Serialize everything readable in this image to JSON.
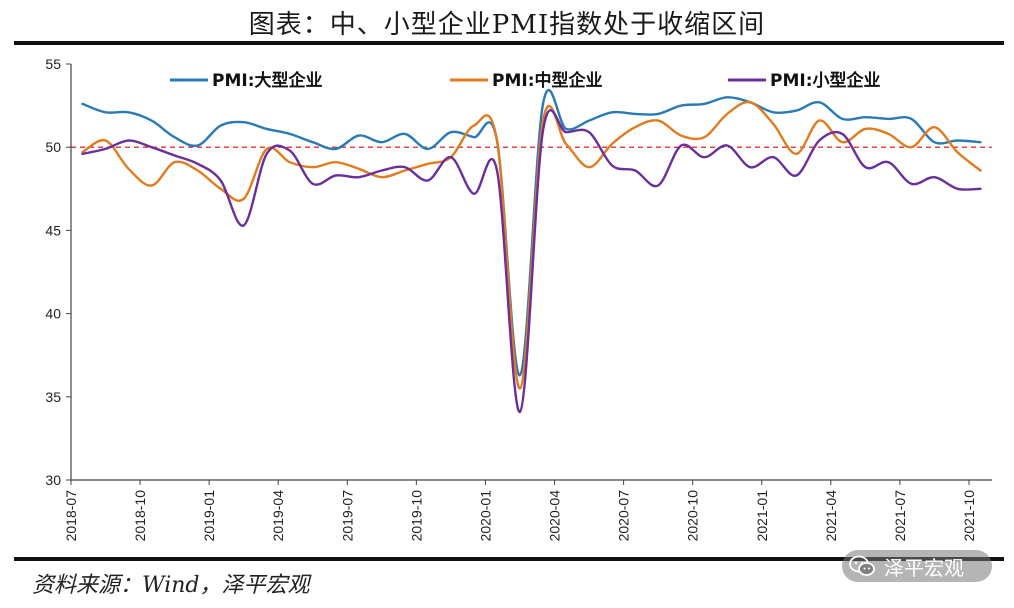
{
  "title": "图表：中、小型企业PMI指数处于收缩区间",
  "source": "资料来源：Wind，泽平宏观",
  "watermark": {
    "text": "泽平宏观",
    "icon": "wechat-icon"
  },
  "chart_data": {
    "type": "line",
    "title": "图表：中、小型企业PMI指数处于收缩区间",
    "xlabel": "",
    "ylabel": "",
    "ylim": [
      30,
      55
    ],
    "yticks": [
      30,
      35,
      40,
      45,
      50,
      55
    ],
    "reference_line": {
      "value": 50,
      "color": "#e03030",
      "style": "dashed"
    },
    "x": [
      "2018-07",
      "2018-08",
      "2018-09",
      "2018-10",
      "2018-11",
      "2018-12",
      "2019-01",
      "2019-02",
      "2019-03",
      "2019-04",
      "2019-05",
      "2019-06",
      "2019-07",
      "2019-08",
      "2019-09",
      "2019-10",
      "2019-11",
      "2019-12",
      "2020-01",
      "2020-02",
      "2020-03",
      "2020-04",
      "2020-05",
      "2020-06",
      "2020-07",
      "2020-08",
      "2020-09",
      "2020-10",
      "2020-11",
      "2020-12",
      "2021-01",
      "2021-02",
      "2021-03",
      "2021-04",
      "2021-05",
      "2021-06",
      "2021-07",
      "2021-08",
      "2021-09",
      "2021-10"
    ],
    "xtick_labels": [
      "2018-07",
      "2018-10",
      "2019-01",
      "2019-04",
      "2019-07",
      "2019-10",
      "2020-01",
      "2020-04",
      "2020-07",
      "2020-10",
      "2021-01",
      "2021-04",
      "2021-07",
      "2021-10"
    ],
    "legend_position": "top",
    "series": [
      {
        "name": "PMI:大型企业",
        "color": "#2a7ab5",
        "values": [
          52.6,
          52.1,
          52.1,
          51.6,
          50.6,
          50.1,
          51.3,
          51.5,
          51.1,
          50.8,
          50.3,
          49.9,
          50.7,
          50.3,
          50.8,
          49.9,
          50.9,
          50.6,
          50.4,
          36.3,
          52.6,
          51.1,
          51.6,
          52.1,
          52.0,
          52.0,
          52.5,
          52.6,
          53.0,
          52.7,
          52.1,
          52.2,
          52.7,
          51.7,
          51.8,
          51.7,
          51.7,
          50.3,
          50.4,
          50.3
        ]
      },
      {
        "name": "PMI:中型企业",
        "color": "#e07b1f",
        "values": [
          49.7,
          50.4,
          48.7,
          47.7,
          49.1,
          48.6,
          47.5,
          46.9,
          49.9,
          49.1,
          48.8,
          49.1,
          48.7,
          48.2,
          48.6,
          49.0,
          49.4,
          51.3,
          50.4,
          35.5,
          51.6,
          50.2,
          48.8,
          50.2,
          51.2,
          51.6,
          50.7,
          50.6,
          52.0,
          52.7,
          51.4,
          49.6,
          51.6,
          50.3,
          51.1,
          50.8,
          50.0,
          51.2,
          49.7,
          48.6
        ]
      },
      {
        "name": "PMI:小型企业",
        "color": "#6a2f9b",
        "values": [
          49.6,
          49.9,
          50.4,
          50.0,
          49.5,
          49.0,
          48.0,
          45.3,
          49.6,
          49.8,
          47.8,
          48.3,
          48.2,
          48.6,
          48.8,
          48.0,
          49.4,
          47.2,
          48.6,
          34.1,
          51.0,
          50.9,
          50.9,
          48.9,
          48.6,
          47.7,
          50.1,
          49.4,
          50.1,
          48.8,
          49.4,
          48.3,
          50.4,
          50.8,
          48.8,
          49.1,
          47.8,
          48.2,
          47.5,
          47.5
        ]
      }
    ]
  }
}
